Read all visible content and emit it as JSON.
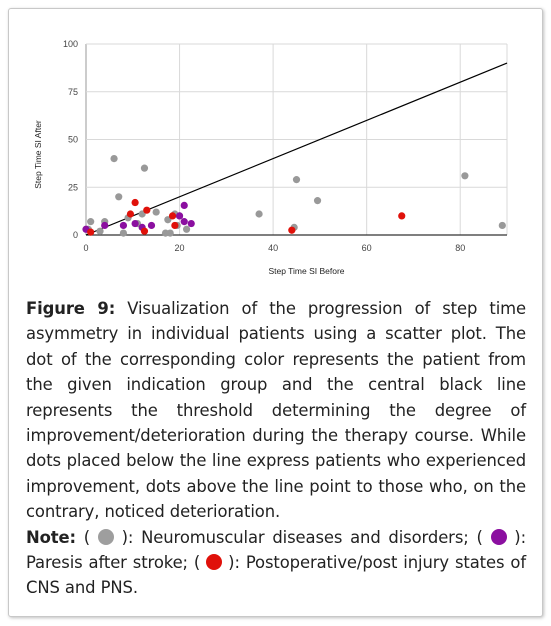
{
  "chart_data": {
    "type": "scatter",
    "xlabel": "Step Time SI Before",
    "ylabel": "Step Time SI After",
    "xlim": [
      0,
      90
    ],
    "ylim": [
      0,
      100
    ],
    "xticks": [
      0,
      20,
      40,
      60,
      80
    ],
    "yticks": [
      0,
      25,
      50,
      75,
      100
    ],
    "xtick_labels": [
      "0",
      "20",
      "40",
      "60",
      "80"
    ],
    "ytick_labels": [
      "0",
      "25",
      "50",
      "75",
      "100"
    ],
    "grid": true,
    "threshold_line": [
      [
        0,
        0
      ],
      [
        90,
        90
      ]
    ],
    "series": [
      {
        "color": "#999999",
        "points": [
          [
            0.5,
            3
          ],
          [
            1,
            7
          ],
          [
            3,
            2
          ],
          [
            4,
            7
          ],
          [
            6,
            40
          ],
          [
            7,
            20
          ],
          [
            8,
            1
          ],
          [
            9,
            9
          ],
          [
            11,
            6
          ],
          [
            12,
            11
          ],
          [
            12.5,
            35
          ],
          [
            15,
            12
          ],
          [
            17,
            1
          ],
          [
            17.5,
            8
          ],
          [
            18,
            1
          ],
          [
            19,
            11
          ],
          [
            19.5,
            5
          ],
          [
            20,
            10
          ],
          [
            21.5,
            3
          ],
          [
            37,
            11
          ],
          [
            44.5,
            4
          ],
          [
            45,
            29
          ],
          [
            49.5,
            18
          ],
          [
            81,
            31
          ],
          [
            89,
            5
          ]
        ]
      },
      {
        "color": "#8b0fa0",
        "points": [
          [
            0,
            3
          ],
          [
            4,
            5
          ],
          [
            8,
            5
          ],
          [
            10.5,
            6
          ],
          [
            12,
            4
          ],
          [
            14,
            5
          ],
          [
            20,
            10
          ],
          [
            21,
            15.5
          ],
          [
            21,
            7
          ],
          [
            22.5,
            6
          ]
        ]
      },
      {
        "color": "#e0110a",
        "points": [
          [
            1,
            1.5
          ],
          [
            9.5,
            11
          ],
          [
            10.5,
            17
          ],
          [
            12.5,
            2
          ],
          [
            13,
            13
          ],
          [
            18.5,
            10
          ],
          [
            19,
            5
          ],
          [
            44,
            2.5
          ],
          [
            67.5,
            10
          ]
        ]
      }
    ]
  },
  "caption": {
    "figure_label": "Figure 9:",
    "figure_text": " Visualization of the progression of step time asymmetry in individual patients using a scatter plot. The dot of the corresponding color represents the patient from the given indication group and the central black line represents the threshold determining the degree of improvement/deterioration during the therapy course. While dots placed below the line express patients who experienced improvement, dots above the line point to those who, on the contrary, noticed deterioration.",
    "note_label": "Note:",
    "note_open_1": " ( ",
    "note_text_1": " ): Neuromuscular diseases and disorders; ( ",
    "note_text_2": " ): Paresis after stroke; ( ",
    "note_text_3": " ): Postoperative/post injury states of CNS and PNS.",
    "colors": {
      "gray": "#9e9e9e",
      "purple": "#8b0fa0",
      "red": "#e0110a"
    }
  }
}
